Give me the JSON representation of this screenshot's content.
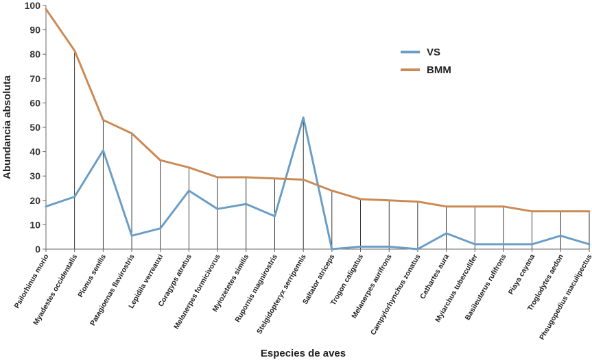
{
  "chart_data": {
    "type": "line",
    "title": "",
    "xlabel": "Especies de aves",
    "ylabel": "Abundancia absoluta",
    "ylim": [
      0,
      100
    ],
    "yticks": [
      0,
      10,
      20,
      30,
      40,
      50,
      60,
      70,
      80,
      90,
      100
    ],
    "grid": false,
    "drop_lines": true,
    "legend_position": "top-right",
    "categories": [
      "Psilorhinus morio",
      "Myadestes occidentalis",
      "Pionus senilis",
      "Patagioenas flavirostris",
      "Lepidila verreauxi",
      "Coragyps atratus",
      "Melanerpes formicivorus",
      "Myiozetetes similis",
      "Rupornis magnirostris",
      "Stelgidopteryx serripennis",
      "Saltator atriceps",
      "Trogon caligatus",
      "Melanerpes aurifrons",
      "Campylorhynchus zonatus",
      "Cathartes aura",
      "Myiarchus tuberculifer",
      "Basileuterus rufifrons",
      "Piaya cayana",
      "Troglodytes aedon",
      "Pheugopedius maculipectus"
    ],
    "series": [
      {
        "name": "VS",
        "color": "#6a9ec6",
        "values": [
          17.5,
          21.5,
          40.5,
          5.5,
          8.5,
          24,
          16.5,
          18.5,
          13.5,
          54,
          0,
          1,
          1,
          0,
          6.5,
          2,
          2,
          2,
          5.5,
          2
        ]
      },
      {
        "name": "BMM",
        "color": "#cb8a55",
        "values": [
          98.5,
          81.5,
          53,
          47.5,
          36.5,
          33.5,
          29.5,
          29.5,
          29,
          28.5,
          24,
          20.5,
          20,
          19.5,
          17.5,
          17.5,
          17.5,
          15.5,
          15.5,
          15.5
        ]
      }
    ]
  }
}
